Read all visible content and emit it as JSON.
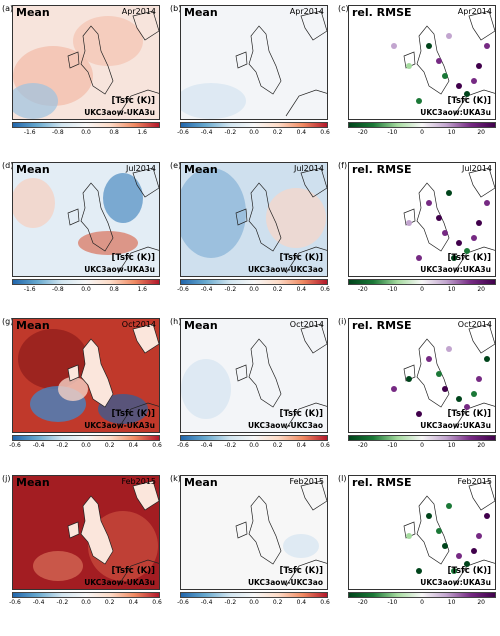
{
  "colors": {
    "blue": "#2166ac",
    "red": "#b2182b",
    "green": "#1b7837",
    "purple": "#762a83"
  },
  "rows": [
    {
      "date": "Apr2014",
      "panels": [
        {
          "label": "(a)",
          "title": "Mean",
          "var": "[Tsfc (K)]",
          "exp": "UKC3aow-UKA3u",
          "kind": "mean",
          "ticks": [
            "-1.6",
            "-0.8",
            "0.0",
            "0.8",
            "1.6"
          ]
        },
        {
          "label": "(b)",
          "title": "Mean",
          "var": "",
          "exp": "UKC3aow-UKC3ao",
          "kind": "mean",
          "ticks": [
            "-0.6",
            "-0.4",
            "-0.2",
            "0.0",
            "0.2",
            "0.4",
            "0.6"
          ]
        },
        {
          "label": "(c)",
          "title": "rel. RMSE",
          "var": "[Tsfc (K)]",
          "exp": "UKC3aow:UKA3u",
          "kind": "rmse",
          "ticks": [
            "-20",
            "-10",
            "0",
            "10",
            "20"
          ]
        }
      ]
    },
    {
      "date": "Jul2014",
      "panels": [
        {
          "label": "(d)",
          "title": "Mean",
          "var": "[Tsfc (K)]",
          "exp": "UKC3aow-UKA3u",
          "kind": "mean",
          "ticks": [
            "-1.6",
            "-0.8",
            "0.0",
            "0.8",
            "1.6"
          ]
        },
        {
          "label": "(e)",
          "title": "Mean",
          "var": "[Tsfc (K)]",
          "exp": "UKC3aow-UKC3ao",
          "kind": "mean",
          "ticks": [
            "-0.6",
            "-0.4",
            "-0.2",
            "0.0",
            "0.2",
            "0.4",
            "0.6"
          ]
        },
        {
          "label": "(f)",
          "title": "rel. RMSE",
          "var": "[Tsfc (K)]",
          "exp": "UKC3aow:UKA3u",
          "kind": "rmse",
          "ticks": [
            "-20",
            "-10",
            "0",
            "10",
            "20"
          ]
        }
      ]
    },
    {
      "date": "Oct2014",
      "panels": [
        {
          "label": "(g)",
          "title": "Mean",
          "var": "[Tsfc (K)]",
          "exp": "UKC3aow-UKA3u",
          "kind": "mean",
          "ticks": [
            "-0.6",
            "-0.4",
            "-0.2",
            "0.0",
            "0.2",
            "0.4",
            "0.6"
          ]
        },
        {
          "label": "(h)",
          "title": "Mean",
          "var": "[Tsfc (K)]",
          "exp": "UKC3aow-UKC3ao",
          "kind": "mean",
          "ticks": [
            "-0.6",
            "-0.4",
            "-0.2",
            "0.0",
            "0.2",
            "0.4",
            "0.6"
          ]
        },
        {
          "label": "(i)",
          "title": "rel. RMSE",
          "var": "[Tsfc (K)]",
          "exp": "UKC3aow:UKA3u",
          "kind": "rmse",
          "ticks": [
            "-20",
            "-10",
            "0",
            "10",
            "20"
          ]
        }
      ]
    },
    {
      "date": "Feb2015",
      "panels": [
        {
          "label": "(j)",
          "title": "Mean",
          "var": "[Tsfc (K)]",
          "exp": "UKC3aow-UKA3u",
          "kind": "mean",
          "ticks": [
            "-0.6",
            "-0.4",
            "-0.2",
            "0.0",
            "0.2",
            "0.4",
            "0.6"
          ]
        },
        {
          "label": "(k)",
          "title": "Mean",
          "var": "[Tsfc (K)]",
          "exp": "UKC3aow-UKC3ao",
          "kind": "mean",
          "ticks": [
            "-0.6",
            "-0.4",
            "-0.2",
            "0.0",
            "0.2",
            "0.4",
            "0.6"
          ]
        },
        {
          "label": "(l)",
          "title": "rel. RMSE",
          "var": "[Tsfc (K)]",
          "exp": "UKC3aow:UKA3u",
          "kind": "rmse",
          "ticks": [
            "-20",
            "-10",
            "0",
            "10",
            "20"
          ]
        }
      ]
    }
  ]
}
